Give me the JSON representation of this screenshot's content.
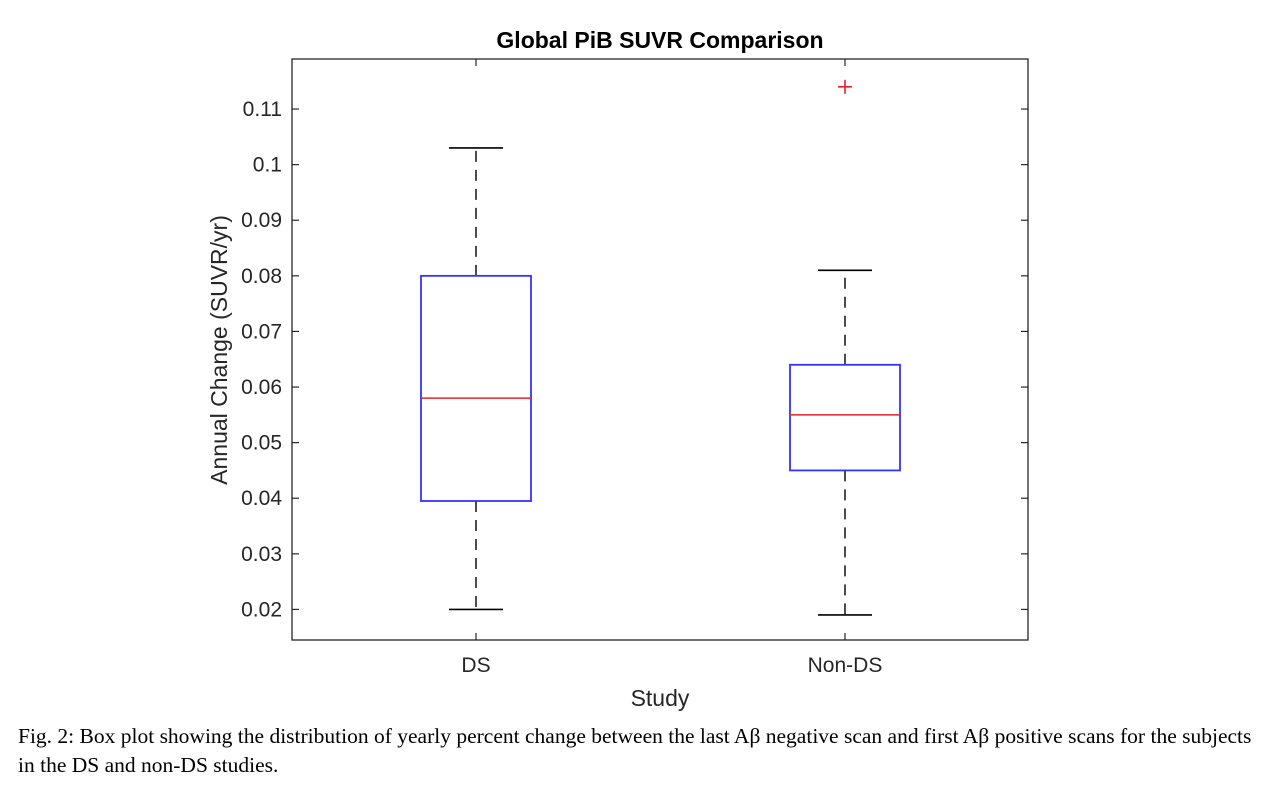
{
  "chart_data": {
    "type": "box",
    "title": "Global PiB SUVR Comparison",
    "xlabel": "Study",
    "ylabel": "Annual Change (SUVR/yr)",
    "ylim": [
      0.0145,
      0.119
    ],
    "yticks": [
      "0.02",
      "0.03",
      "0.04",
      "0.05",
      "0.06",
      "0.07",
      "0.08",
      "0.09",
      "0.1",
      "0.11"
    ],
    "grid": false,
    "categories": [
      "DS",
      "Non-DS"
    ],
    "boxes": [
      {
        "category": "DS",
        "whisker_low": 0.02,
        "q1": 0.0395,
        "median": 0.058,
        "q3": 0.08,
        "whisker_high": 0.103,
        "outliers": []
      },
      {
        "category": "Non-DS",
        "whisker_low": 0.019,
        "q1": 0.045,
        "median": 0.055,
        "q3": 0.064,
        "whisker_high": 0.081,
        "outliers": [
          0.114
        ]
      }
    ],
    "colors": {
      "box": "#3333ff",
      "median": "#e8202a",
      "whisker": "#000000",
      "outlier": "#e8202a"
    }
  },
  "caption": "Fig. 2: Box plot showing the distribution of yearly percent change between the last Aβ negative scan and first Aβ positive scans for the subjects in the DS and non-DS studies."
}
